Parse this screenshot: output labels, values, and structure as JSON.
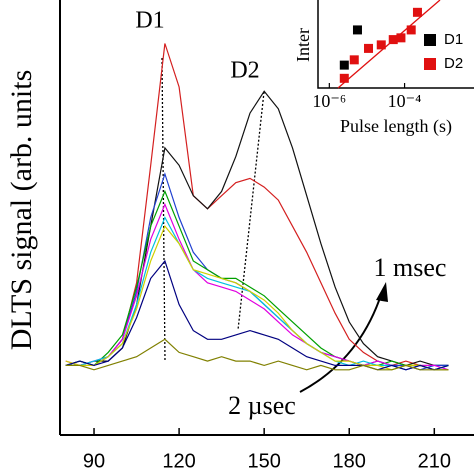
{
  "chart_data": [
    {
      "type": "line",
      "y_label": "DLTS signal (arb. units",
      "annotations": [
        "D1",
        "D2",
        "1 msec",
        "2 µsec"
      ],
      "x": [
        80,
        85,
        90,
        95,
        100,
        105,
        110,
        115,
        120,
        125,
        130,
        135,
        140,
        145,
        150,
        155,
        160,
        165,
        170,
        175,
        180,
        185,
        190,
        195,
        200,
        205,
        210,
        215
      ],
      "xlim": [
        78,
        224
      ],
      "xticks": [
        90,
        120,
        150,
        180,
        210
      ],
      "ylim": [
        0,
        100
      ],
      "series": [
        {
          "color": "#d42020",
          "values": [
            16,
            17,
            16,
            18,
            22,
            35,
            62,
            90,
            80,
            55,
            52,
            55,
            58,
            59,
            57,
            54,
            48,
            42,
            35,
            28,
            22,
            19,
            17,
            16,
            17,
            16,
            15,
            16
          ]
        },
        {
          "color": "#111111",
          "values": [
            16,
            16,
            17,
            17,
            20,
            30,
            48,
            66,
            62,
            55,
            52,
            56,
            64,
            74,
            79,
            75,
            66,
            55,
            44,
            34,
            26,
            21,
            18,
            17,
            16,
            17,
            16,
            16
          ]
        },
        {
          "color": "#2040d0",
          "values": [
            16,
            17,
            16,
            18,
            22,
            33,
            50,
            60,
            50,
            42,
            38,
            36,
            35,
            33,
            30,
            27,
            24,
            21,
            19,
            18,
            17,
            16,
            17,
            16,
            16,
            15,
            16,
            16
          ]
        },
        {
          "color": "#00a000",
          "values": [
            16,
            17,
            16,
            19,
            23,
            34,
            48,
            56,
            48,
            40,
            38,
            36,
            36,
            34,
            32,
            29,
            26,
            23,
            20,
            18,
            17,
            16,
            16,
            17,
            16,
            16,
            15,
            16
          ]
        },
        {
          "color": "#e000e0",
          "values": [
            17,
            16,
            17,
            18,
            22,
            32,
            45,
            53,
            45,
            38,
            35,
            34,
            33,
            31,
            29,
            26,
            23,
            21,
            19,
            18,
            17,
            16,
            17,
            16,
            15,
            16,
            16,
            15
          ]
        },
        {
          "color": "#00c0e0",
          "values": [
            16,
            16,
            17,
            18,
            21,
            30,
            42,
            50,
            44,
            38,
            36,
            35,
            34,
            33,
            30,
            27,
            24,
            21,
            19,
            17,
            16,
            17,
            16,
            16,
            15,
            16,
            15,
            16
          ]
        },
        {
          "color": "#d0d000",
          "values": [
            17,
            16,
            16,
            18,
            21,
            29,
            40,
            48,
            44,
            38,
            37,
            36,
            35,
            33,
            31,
            28,
            24,
            21,
            19,
            17,
            17,
            16,
            16,
            15,
            16,
            16,
            15,
            15
          ]
        },
        {
          "color": "#000080",
          "values": [
            16,
            17,
            16,
            17,
            20,
            27,
            36,
            40,
            30,
            24,
            22,
            22,
            23,
            24,
            23,
            22,
            20,
            18,
            17,
            16,
            16,
            16,
            15,
            16,
            15,
            16,
            15,
            16
          ]
        },
        {
          "color": "#808000",
          "values": [
            16,
            16,
            15,
            16,
            17,
            18,
            20,
            22,
            19,
            18,
            17,
            18,
            17,
            17,
            16,
            17,
            16,
            15,
            16,
            15,
            15,
            16,
            15,
            15,
            16,
            15,
            15,
            15
          ]
        }
      ]
    },
    {
      "type": "scatter",
      "x_label": "Pulse length (s)",
      "y_label": "Inter",
      "xscale": "log",
      "xlim": [
        5e-07,
        0.007
      ],
      "ylim": [
        0,
        100
      ],
      "xticks": [
        {
          "value": 1e-06,
          "label": "10⁻⁶"
        },
        {
          "value": 0.0001,
          "label": "10⁻⁴"
        }
      ],
      "series": [
        {
          "name": "D1",
          "color": "#000000",
          "x": [
            2.5e-06,
            5.6e-06
          ],
          "values": [
            26,
            66
          ]
        },
        {
          "name": "D2",
          "color": "#e01010",
          "x": [
            2.5e-06,
            4.6e-06,
            1.1e-05,
            2.4e-05,
            5e-05,
            8e-05,
            0.00015,
            0.00022
          ],
          "values": [
            11,
            32,
            45,
            49,
            55,
            57,
            66,
            86
          ]
        }
      ]
    }
  ]
}
